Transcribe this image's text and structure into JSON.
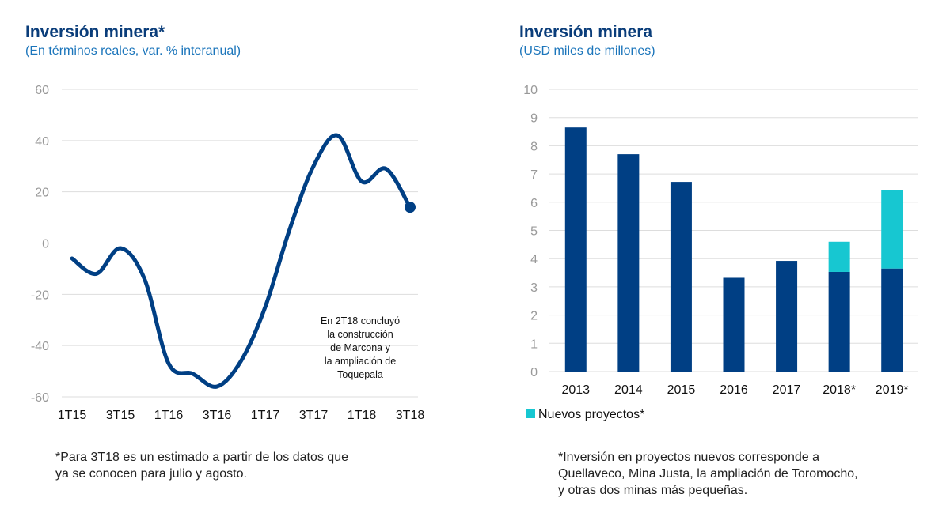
{
  "left": {
    "title": "Inversión minera*",
    "subtitle": "(En términos reales, var. % interanual)",
    "note": "*Para 3T18 es un estimado a partir de los datos que\nya se conocen para julio y agosto.",
    "annotation": [
      "En 2T18 concluyó",
      "la construcción",
      "de Marcona y",
      "la ampliación de",
      "Toquepala"
    ]
  },
  "right": {
    "title": "Inversión minera",
    "subtitle": "(USD miles de millones)",
    "note": "*Inversión en proyectos nuevos corresponde a\nQuellaveco, Mina Justa, la ampliación de Toromocho,\ny otras dos minas más pequeñas."
  },
  "chart_data": [
    {
      "type": "line",
      "title": "Inversión minera*",
      "subtitle": "(En términos reales, var. % interanual)",
      "x": [
        "1T15",
        "2T15",
        "3T15",
        "4T15",
        "1T16",
        "2T16",
        "3T16",
        "4T16",
        "1T17",
        "2T17",
        "3T17",
        "4T17",
        "1T18",
        "2T18",
        "3T18"
      ],
      "x_tick_labels": [
        "1T15",
        "3T15",
        "1T16",
        "3T16",
        "1T17",
        "3T17",
        "1T18",
        "3T18"
      ],
      "values": [
        -6,
        -12,
        -2,
        -14,
        -47,
        -51,
        -56,
        -46,
        -25,
        5,
        30,
        42,
        24,
        29,
        14
      ],
      "series": [
        {
          "values": [
            -6,
            -12,
            -2,
            -14,
            -47,
            -51,
            -56,
            -46,
            -25,
            5,
            30,
            42,
            24,
            29,
            14
          ],
          "color": "#003f84"
        }
      ],
      "yticks": [
        60,
        40,
        20,
        0,
        -20,
        -40,
        -60
      ],
      "ylim": [
        -60,
        60
      ],
      "grid": true,
      "end_marker": true
    },
    {
      "type": "bar",
      "stacked": true,
      "title": "Inversión minera",
      "subtitle": "(USD miles de millones)",
      "categories": [
        "2013",
        "2014",
        "2015",
        "2016",
        "2017",
        "2018*",
        "2019*"
      ],
      "series": [
        {
          "name": "",
          "values": [
            8.65,
            7.7,
            6.72,
            3.32,
            3.92,
            3.53,
            3.65
          ],
          "color": "#003f84"
        },
        {
          "name": "Nuevos proyectos*",
          "values": [
            0,
            0,
            0,
            0,
            0,
            1.07,
            2.77
          ],
          "color": "#17c7d1"
        }
      ],
      "yticks": [
        10,
        9,
        8,
        7,
        6,
        5,
        4,
        3,
        2,
        1,
        0
      ],
      "ylim": [
        0,
        10
      ],
      "grid": true,
      "legend": "bottom-left"
    }
  ]
}
